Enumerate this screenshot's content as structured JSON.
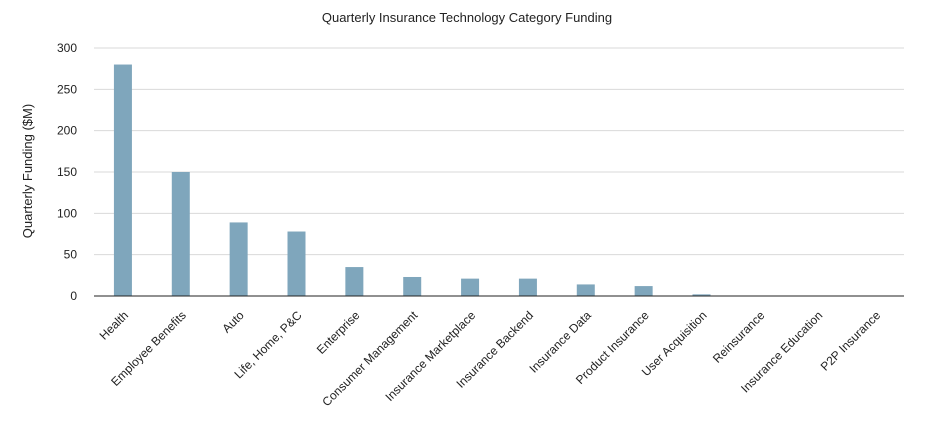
{
  "chart_data": {
    "type": "bar",
    "title": "Quarterly Insurance Technology Category Funding",
    "xlabel": "",
    "ylabel": "Quarterly Funding ($M)",
    "ylim": [
      0,
      300
    ],
    "yticks": [
      0,
      50,
      100,
      150,
      200,
      250,
      300
    ],
    "grid": true,
    "legend": "none",
    "bar_color": "#7fa6bc",
    "categories": [
      "Health",
      "Employee Benefits",
      "Auto",
      "Life, Home, P&C",
      "Enterprise",
      "Consumer Management",
      "Insurance Marketplace",
      "Insurance Backend",
      "Insurance Data",
      "Product Insurance",
      "User Acquisition",
      "Reinsurance",
      "Insurance Education",
      "P2P Insurance"
    ],
    "values": [
      280,
      150,
      89,
      78,
      35,
      23,
      21,
      21,
      14,
      12,
      2,
      0,
      0,
      0
    ]
  }
}
